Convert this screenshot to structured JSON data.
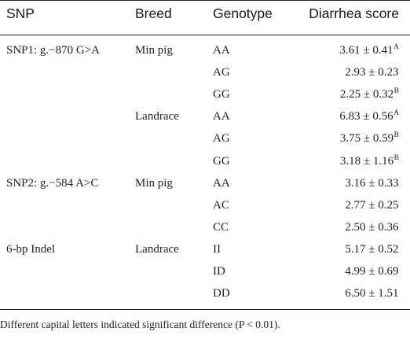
{
  "table": {
    "headers": {
      "snp": "SNP",
      "breed": "Breed",
      "genotype": "Genotype",
      "score": "Diarrhea score"
    },
    "rows": [
      {
        "snp": "SNP1: g.−870 G>A",
        "breed": "Min pig",
        "genotype": "AA",
        "score": "3.61 ± 0.41",
        "sup": "A"
      },
      {
        "snp": "",
        "breed": "",
        "genotype": "AG",
        "score": "2.93 ± 0.23",
        "sup": ""
      },
      {
        "snp": "",
        "breed": "",
        "genotype": "GG",
        "score": "2.25 ± 0.32",
        "sup": "B"
      },
      {
        "snp": "",
        "breed": "Landrace",
        "genotype": "AA",
        "score": "6.83 ± 0.56",
        "sup": "A"
      },
      {
        "snp": "",
        "breed": "",
        "genotype": "AG",
        "score": "3.75 ± 0.59",
        "sup": "B"
      },
      {
        "snp": "",
        "breed": "",
        "genotype": "GG",
        "score": "3.18 ± 1.16",
        "sup": "B"
      },
      {
        "snp": "SNP2: g.−584 A>C",
        "breed": "Min pig",
        "genotype": "AA",
        "score": "3.16 ± 0.33",
        "sup": ""
      },
      {
        "snp": "",
        "breed": "",
        "genotype": "AC",
        "score": "2.77 ± 0.25",
        "sup": ""
      },
      {
        "snp": "",
        "breed": "",
        "genotype": "CC",
        "score": "2.50 ± 0.36",
        "sup": ""
      },
      {
        "snp": "6-bp Indel",
        "breed": "Landrace",
        "genotype": "II",
        "score": "5.17 ± 0.52",
        "sup": ""
      },
      {
        "snp": "",
        "breed": "",
        "genotype": "ID",
        "score": "4.99 ± 0.69",
        "sup": ""
      },
      {
        "snp": "",
        "breed": "",
        "genotype": "DD",
        "score": "6.50 ± 1.51",
        "sup": ""
      }
    ],
    "footnote": "Different capital letters indicated significant difference (P < 0.01)."
  }
}
